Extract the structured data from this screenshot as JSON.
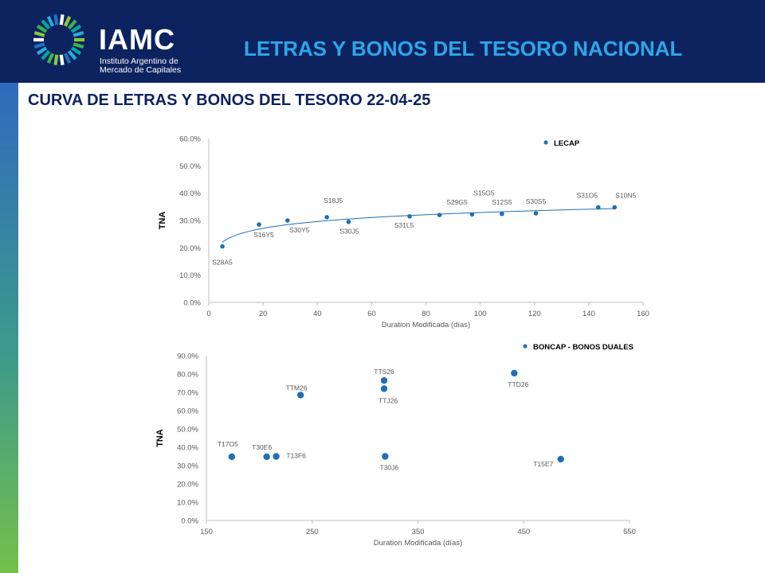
{
  "header": {
    "brand": "IAMC",
    "subtitle_line1": "Instituto Argentino de",
    "subtitle_line2": "Mercado de Capitales",
    "title": "LETRAS Y BONOS DEL TESORO NACIONAL"
  },
  "page_title": "CURVA DE LETRAS Y BONOS DEL TESORO  22-04-25",
  "colors": {
    "header_bg": "#0d2360",
    "title_accent": "#2ea6e8",
    "series": "#1f6fb5",
    "axis": "#bfbfbf",
    "label": "#595959"
  },
  "chart_data": [
    {
      "type": "scatter",
      "legend": "LECAP",
      "legend_position": "top-right",
      "xlabel": "Duration  Modificada (días)",
      "ylabel": "TNA",
      "xlim": [
        0,
        160
      ],
      "ylim": [
        0,
        60
      ],
      "xticks": [
        0,
        20,
        40,
        60,
        80,
        100,
        120,
        140,
        160
      ],
      "yticks": [
        "0.0%",
        "10.0%",
        "20.0%",
        "30.0%",
        "40.0%",
        "50.0%",
        "60.0%"
      ],
      "grid": false,
      "trendline": "logarithmic",
      "points": [
        {
          "label": "S28A5",
          "x": 5,
          "y": 20.5
        },
        {
          "label": "S16Y5",
          "x": 18.5,
          "y": 28.5
        },
        {
          "label": "S30Y5",
          "x": 29,
          "y": 30.0
        },
        {
          "label": "S18J5",
          "x": 43.5,
          "y": 31.2
        },
        {
          "label": "S30J5",
          "x": 51.5,
          "y": 29.5
        },
        {
          "label": "S31L5",
          "x": 74,
          "y": 31.5
        },
        {
          "label": "S29G5",
          "x": 85,
          "y": 32.0
        },
        {
          "label": "S15G5",
          "x": 97,
          "y": 32.2
        },
        {
          "label": "S12S5",
          "x": 108,
          "y": 32.4
        },
        {
          "label": "S30S5",
          "x": 120.5,
          "y": 32.6
        },
        {
          "label": "S31O5",
          "x": 143.5,
          "y": 34.8
        },
        {
          "label": "S10N5",
          "x": 149.5,
          "y": 34.8
        }
      ]
    },
    {
      "type": "scatter",
      "legend": "BONCAP - BONOS DUALES",
      "legend_position": "top-right",
      "xlabel": "Duration  Modificada (días)",
      "ylabel": "TNA",
      "xlim": [
        150,
        550
      ],
      "ylim": [
        0,
        90
      ],
      "xticks": [
        150,
        250,
        350,
        450,
        550
      ],
      "yticks": [
        "0.0%",
        "10.0%",
        "20.0%",
        "30.0%",
        "40.0%",
        "50.0%",
        "60.0%",
        "70.0%",
        "80.0%",
        "90.0%"
      ],
      "grid": false,
      "points": [
        {
          "label": "T17O5",
          "x": 174,
          "y": 34.8
        },
        {
          "label": "T30E6",
          "x": 207,
          "y": 34.8
        },
        {
          "label": "T13F6",
          "x": 216,
          "y": 35.0
        },
        {
          "label": "TTM26",
          "x": 239,
          "y": 68.5
        },
        {
          "label": "TTS26",
          "x": 318,
          "y": 76.5
        },
        {
          "label": "TTJ26",
          "x": 318,
          "y": 72.0
        },
        {
          "label": "T30J6",
          "x": 319,
          "y": 35.0
        },
        {
          "label": "TTD26",
          "x": 441,
          "y": 80.5
        },
        {
          "label": "T15E7",
          "x": 485,
          "y": 33.5
        }
      ]
    }
  ]
}
